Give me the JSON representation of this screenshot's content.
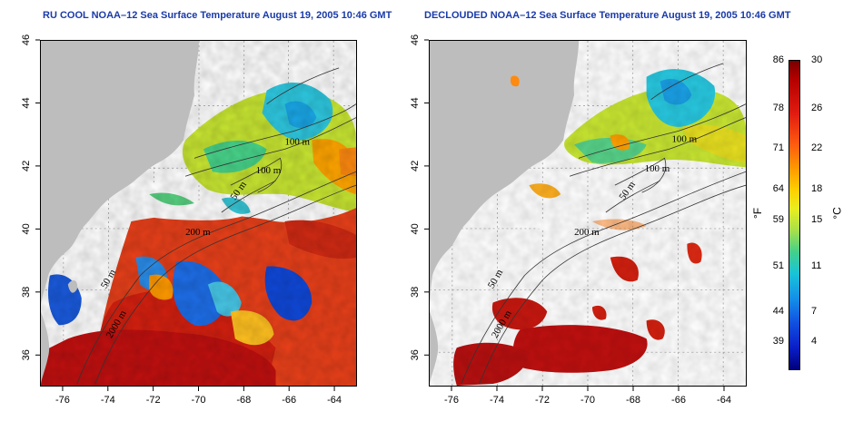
{
  "titles": {
    "left": "RU COOL NOAA–12 Sea Surface Temperature August 19, 2005 10:46 GMT",
    "right": "DECLOUDED NOAA–12 Sea Surface Temperature August 19, 2005 10:46 GMT"
  },
  "axes": {
    "lat_ticks": [
      "36",
      "38",
      "40",
      "42",
      "44",
      "46"
    ],
    "lon_ticks": [
      "-76",
      "-74",
      "-72",
      "-70",
      "-68",
      "-66",
      "-64"
    ],
    "lat_range": [
      35,
      46
    ],
    "lon_range": [
      -77,
      -63
    ]
  },
  "isobath_labels": {
    "left": [
      "100 m",
      "100 m",
      "50 m",
      "200 m",
      "50 m",
      "2000 m"
    ],
    "right": [
      "100 m",
      "100 m",
      "50 m",
      "200 m",
      "50 m",
      "2000 m"
    ]
  },
  "colorbar": {
    "fahrenheit_labels": [
      "86",
      "78",
      "71",
      "64",
      "59",
      "51",
      "44",
      "39"
    ],
    "celsius_labels": [
      "30",
      "26",
      "22",
      "18",
      "15",
      "11",
      "7",
      "4"
    ],
    "fahrenheit_unit": "°F",
    "celsius_unit": "°C"
  },
  "colors": {
    "land": "#bdbdbd",
    "title": "#1a3aa8",
    "warm": "#d42010",
    "cold": "#1060e0",
    "mid": "#e8e820"
  }
}
